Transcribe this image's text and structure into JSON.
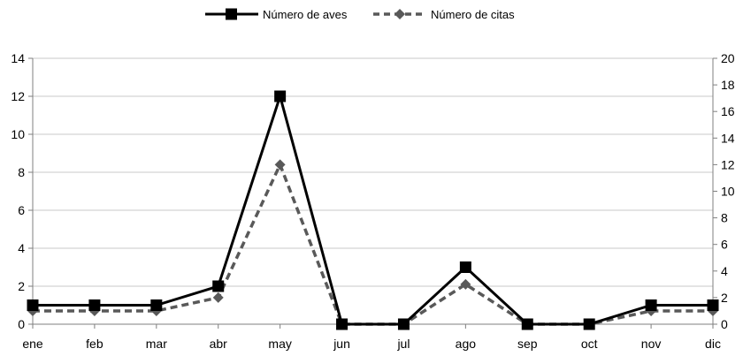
{
  "chart_data": {
    "type": "line",
    "categories": [
      "ene",
      "feb",
      "mar",
      "abr",
      "may",
      "jun",
      "jul",
      "ago",
      "sep",
      "oct",
      "nov",
      "dic"
    ],
    "series": [
      {
        "name": "Número de aves",
        "axis": "left",
        "values": [
          1,
          1,
          1,
          2,
          12,
          0,
          0,
          3,
          0,
          0,
          1,
          1
        ],
        "color": "#000000",
        "line_style": "solid",
        "marker": "square"
      },
      {
        "name": "Número de citas",
        "axis": "right",
        "values": [
          1,
          1,
          1,
          2,
          12,
          0,
          0,
          3,
          0,
          0,
          1,
          1
        ],
        "color": "#595959",
        "line_style": "dashed",
        "marker": "diamond"
      }
    ],
    "y_left": {
      "min": 0,
      "max": 14,
      "ticks": [
        "0",
        "2",
        "4",
        "6",
        "8",
        "10",
        "12",
        "14"
      ]
    },
    "y_right": {
      "min": 0,
      "max": 20,
      "ticks": [
        "0",
        "2",
        "4",
        "6",
        "8",
        "10",
        "12",
        "14",
        "16",
        "18",
        "20"
      ]
    },
    "grid": true,
    "legend_position": "top-center"
  }
}
